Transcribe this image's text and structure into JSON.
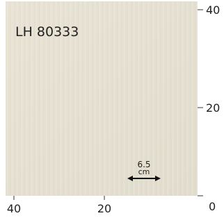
{
  "swatch": {
    "code": "LH 80333"
  },
  "scale": {
    "value": "6.5",
    "unit": "cm"
  },
  "right_axis": {
    "ticks": [
      "40",
      "20",
      "0"
    ]
  },
  "bottom_axis": {
    "ticks": [
      "40",
      "20"
    ]
  }
}
